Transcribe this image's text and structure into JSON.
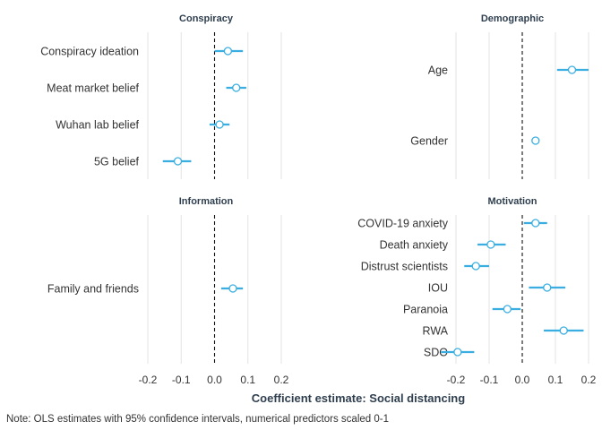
{
  "chart_data": {
    "type": "scatter",
    "subtype": "coefficient-plot",
    "xlabel": "Coefficient estimate: Social distancing",
    "note": "Note: OLS estimates with 95% confidence intervals, numerical predictors scaled 0-1",
    "xlim": [
      -0.2,
      0.2
    ],
    "xticks": [
      "-0.2",
      "-0.1",
      "0.0",
      "0.1",
      "0.2"
    ],
    "grid": true,
    "reference_line": 0,
    "colors": {
      "point": "#3aaee0",
      "point_fill": "#ffffff",
      "title": "#2f3f4f",
      "grid": "#e3e3e3"
    },
    "panels": [
      {
        "title": "Conspiracy",
        "items": [
          {
            "label": "Conspiracy ideation",
            "estimate": 0.04,
            "ci": [
              0.0,
              0.085
            ]
          },
          {
            "label": "Meat market belief",
            "estimate": 0.065,
            "ci": [
              0.035,
              0.095
            ]
          },
          {
            "label": "Wuhan lab belief",
            "estimate": 0.015,
            "ci": [
              -0.015,
              0.045
            ]
          },
          {
            "label": "5G belief",
            "estimate": -0.11,
            "ci": [
              -0.155,
              -0.07
            ]
          }
        ]
      },
      {
        "title": "Demographic",
        "items": [
          {
            "label": "Age",
            "estimate": 0.15,
            "ci": [
              0.105,
              0.2
            ]
          },
          {
            "label": "Gender",
            "estimate": 0.04,
            "ci": [
              0.03,
              0.05
            ]
          }
        ]
      },
      {
        "title": "Information",
        "items": [
          {
            "label": "Family and friends",
            "estimate": 0.055,
            "ci": [
              0.02,
              0.085
            ]
          }
        ]
      },
      {
        "title": "Motivation",
        "items": [
          {
            "label": "COVID-19 anxiety",
            "estimate": 0.04,
            "ci": [
              0.005,
              0.075
            ]
          },
          {
            "label": "Death anxiety",
            "estimate": -0.095,
            "ci": [
              -0.135,
              -0.05
            ]
          },
          {
            "label": "Distrust scientists",
            "estimate": -0.14,
            "ci": [
              -0.175,
              -0.1
            ]
          },
          {
            "label": "IOU",
            "estimate": 0.075,
            "ci": [
              0.02,
              0.13
            ]
          },
          {
            "label": "Paranoia",
            "estimate": -0.045,
            "ci": [
              -0.09,
              -0.005
            ]
          },
          {
            "label": "RWA",
            "estimate": 0.125,
            "ci": [
              0.065,
              0.185
            ]
          },
          {
            "label": "SDO",
            "estimate": -0.195,
            "ci": [
              -0.245,
              -0.145
            ]
          }
        ]
      }
    ]
  }
}
